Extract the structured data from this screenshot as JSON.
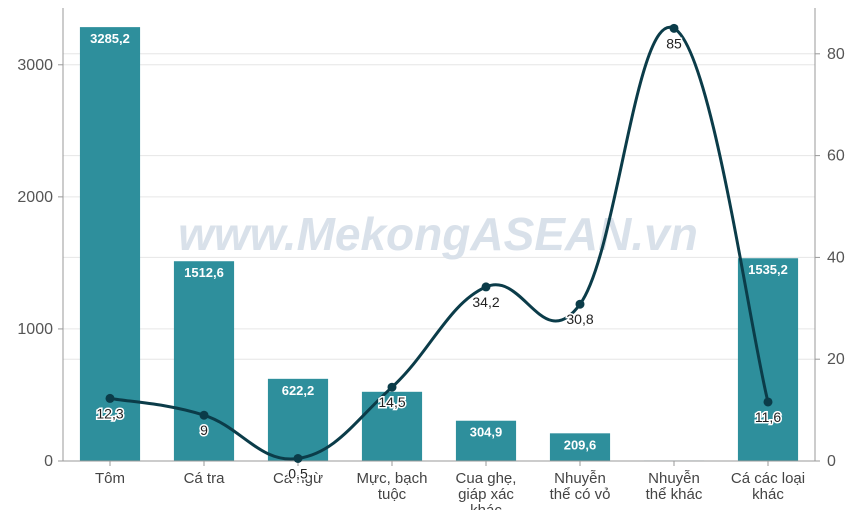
{
  "watermark": "www.MekongASEAN.vn",
  "colors": {
    "bar": "#2e8f9c",
    "line": "#0b3c49",
    "grid": "#e6e6e6",
    "axis": "#999999"
  },
  "chart_data": {
    "type": "bar",
    "categories": [
      [
        "Tôm"
      ],
      [
        "Cá tra"
      ],
      [
        "Cá ngừ"
      ],
      [
        "Mực, bạch",
        "tuộc"
      ],
      [
        "Cua ghẹ,",
        "giáp xác",
        "khác"
      ],
      [
        "Nhuyễn",
        "thể có vỏ"
      ],
      [
        "Nhuyễn",
        "thể khác"
      ],
      [
        "Cá các loại",
        "khác"
      ]
    ],
    "series": [
      {
        "type": "bar",
        "axis": "left",
        "values": [
          3285.2,
          1512.6,
          622.2,
          524,
          304.9,
          209.6,
          4,
          1535.2
        ],
        "labels": [
          "3285,2",
          "1512,6",
          "622,2",
          "",
          "304,9",
          "209,6",
          "",
          "1535,2"
        ]
      },
      {
        "type": "line",
        "axis": "right",
        "smooth": true,
        "values": [
          12.3,
          9,
          0.5,
          14.5,
          34.2,
          30.8,
          85,
          11.6
        ],
        "labels": [
          "12,3",
          "9",
          "0,5",
          "14,5",
          "34,2",
          "30,8",
          "85",
          "11,6"
        ]
      }
    ],
    "y_left": {
      "min": 0,
      "max": 3430,
      "ticks": [
        0,
        1000,
        2000,
        3000
      ]
    },
    "y_right": {
      "min": 0,
      "max": 89,
      "ticks": [
        0,
        20,
        40,
        60,
        80
      ]
    },
    "grid": true
  }
}
